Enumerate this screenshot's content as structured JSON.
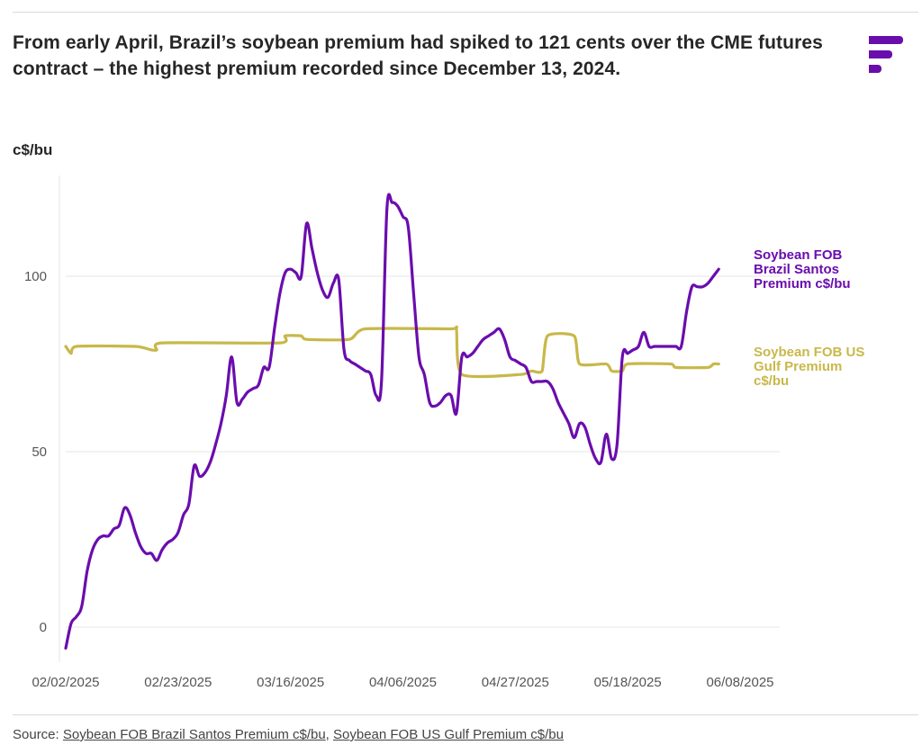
{
  "header": {
    "title": "From early April, Brazil’s soybean premium had spiked to 121 cents over the CME futures contract – the highest premium recorded since December 13, 2024."
  },
  "brand": {
    "logo_icon": "brand-logo-icon",
    "color": "#6a0dad"
  },
  "source": {
    "prefix": "Source: ",
    "links": [
      "Soybean FOB Brazil Santos Premium c$/bu",
      "Soybean FOB US Gulf Premium c$/bu"
    ],
    "separator": ", "
  },
  "chart_data": {
    "type": "line",
    "ylabel": "c$/bu",
    "ylim": [
      -10,
      130
    ],
    "yticks": [
      0,
      50,
      100
    ],
    "xlim": [
      "2025-02-02",
      "2025-06-08"
    ],
    "xticks": [
      "02/02/2025",
      "02/23/2025",
      "03/16/2025",
      "04/06/2025",
      "04/27/2025",
      "05/18/2025",
      "06/08/2025"
    ],
    "grid": "horizontal",
    "legend": "right (labels at line ends)",
    "series": [
      {
        "name": "Soybean FOB Brazil Santos Premium c$/bu",
        "label_lines": [
          "Soybean FOB",
          "Brazil Santos",
          "Premium c$/bu"
        ],
        "color": "#6a0dad",
        "points": [
          [
            "2025-02-02",
            -6
          ],
          [
            "2025-02-03",
            1
          ],
          [
            "2025-02-04",
            3
          ],
          [
            "2025-02-05",
            6
          ],
          [
            "2025-02-06",
            16
          ],
          [
            "2025-02-07",
            22
          ],
          [
            "2025-02-08",
            25
          ],
          [
            "2025-02-09",
            26
          ],
          [
            "2025-02-10",
            26
          ],
          [
            "2025-02-11",
            28
          ],
          [
            "2025-02-12",
            29
          ],
          [
            "2025-02-13",
            34
          ],
          [
            "2025-02-14",
            32
          ],
          [
            "2025-02-15",
            27
          ],
          [
            "2025-02-16",
            23
          ],
          [
            "2025-02-17",
            21
          ],
          [
            "2025-02-18",
            21
          ],
          [
            "2025-02-19",
            19
          ],
          [
            "2025-02-20",
            22
          ],
          [
            "2025-02-21",
            24
          ],
          [
            "2025-02-22",
            25
          ],
          [
            "2025-02-23",
            27
          ],
          [
            "2025-02-24",
            32
          ],
          [
            "2025-02-25",
            35
          ],
          [
            "2025-02-26",
            46
          ],
          [
            "2025-02-27",
            43
          ],
          [
            "2025-02-28",
            44
          ],
          [
            "2025-03-01",
            47
          ],
          [
            "2025-03-02",
            52
          ],
          [
            "2025-03-03",
            58
          ],
          [
            "2025-03-04",
            66
          ],
          [
            "2025-03-05",
            77
          ],
          [
            "2025-03-06",
            64
          ],
          [
            "2025-03-07",
            65
          ],
          [
            "2025-03-08",
            67
          ],
          [
            "2025-03-09",
            68
          ],
          [
            "2025-03-10",
            69
          ],
          [
            "2025-03-11",
            74
          ],
          [
            "2025-03-12",
            74
          ],
          [
            "2025-03-13",
            85
          ],
          [
            "2025-03-14",
            95
          ],
          [
            "2025-03-15",
            101
          ],
          [
            "2025-03-16",
            102
          ],
          [
            "2025-03-17",
            101
          ],
          [
            "2025-03-18",
            100
          ],
          [
            "2025-03-19",
            115
          ],
          [
            "2025-03-20",
            108
          ],
          [
            "2025-03-21",
            101
          ],
          [
            "2025-03-22",
            96
          ],
          [
            "2025-03-23",
            94
          ],
          [
            "2025-03-24",
            98
          ],
          [
            "2025-03-25",
            99
          ],
          [
            "2025-03-26",
            79
          ],
          [
            "2025-03-27",
            76
          ],
          [
            "2025-03-28",
            75
          ],
          [
            "2025-03-29",
            74
          ],
          [
            "2025-03-30",
            73
          ],
          [
            "2025-03-31",
            72
          ],
          [
            "2025-04-01",
            66
          ],
          [
            "2025-04-02",
            70
          ],
          [
            "2025-04-03",
            119
          ],
          [
            "2025-04-04",
            121
          ],
          [
            "2025-04-05",
            120
          ],
          [
            "2025-04-06",
            117
          ],
          [
            "2025-04-07",
            114
          ],
          [
            "2025-04-08",
            95
          ],
          [
            "2025-04-09",
            77
          ],
          [
            "2025-04-10",
            72
          ],
          [
            "2025-04-11",
            64
          ],
          [
            "2025-04-12",
            63
          ],
          [
            "2025-04-13",
            64
          ],
          [
            "2025-04-14",
            66
          ],
          [
            "2025-04-15",
            66
          ],
          [
            "2025-04-16",
            61
          ],
          [
            "2025-04-17",
            77
          ],
          [
            "2025-04-18",
            77
          ],
          [
            "2025-04-19",
            78
          ],
          [
            "2025-04-20",
            80
          ],
          [
            "2025-04-21",
            82
          ],
          [
            "2025-04-22",
            83
          ],
          [
            "2025-04-23",
            84
          ],
          [
            "2025-04-24",
            85
          ],
          [
            "2025-04-25",
            82
          ],
          [
            "2025-04-26",
            77
          ],
          [
            "2025-04-27",
            76
          ],
          [
            "2025-04-28",
            75
          ],
          [
            "2025-04-29",
            74
          ],
          [
            "2025-04-30",
            70
          ],
          [
            "2025-05-01",
            70
          ],
          [
            "2025-05-02",
            70
          ],
          [
            "2025-05-03",
            70
          ],
          [
            "2025-05-04",
            68
          ],
          [
            "2025-05-05",
            64
          ],
          [
            "2025-05-06",
            61
          ],
          [
            "2025-05-07",
            58
          ],
          [
            "2025-05-08",
            54
          ],
          [
            "2025-05-09",
            58
          ],
          [
            "2025-05-10",
            57
          ],
          [
            "2025-05-11",
            52
          ],
          [
            "2025-05-12",
            48
          ],
          [
            "2025-05-13",
            47
          ],
          [
            "2025-05-14",
            55
          ],
          [
            "2025-05-15",
            48
          ],
          [
            "2025-05-16",
            52
          ],
          [
            "2025-05-17",
            77
          ],
          [
            "2025-05-18",
            78
          ],
          [
            "2025-05-19",
            79
          ],
          [
            "2025-05-20",
            80
          ],
          [
            "2025-05-21",
            84
          ],
          [
            "2025-05-22",
            80
          ],
          [
            "2025-05-23",
            80
          ],
          [
            "2025-05-24",
            80
          ],
          [
            "2025-05-25",
            80
          ],
          [
            "2025-05-26",
            80
          ],
          [
            "2025-05-27",
            80
          ],
          [
            "2025-05-28",
            80
          ],
          [
            "2025-05-29",
            90
          ],
          [
            "2025-05-30",
            97
          ],
          [
            "2025-05-31",
            97
          ],
          [
            "2025-06-01",
            97
          ],
          [
            "2025-06-02",
            98
          ],
          [
            "2025-06-03",
            100
          ],
          [
            "2025-06-04",
            102
          ]
        ]
      },
      {
        "name": "Soybean FOB US Gulf Premium c$/bu",
        "label_lines": [
          "Soybean FOB US",
          "Gulf Premium",
          "c$/bu"
        ],
        "color": "#c8b84a",
        "points": [
          [
            "2025-02-02",
            80
          ],
          [
            "2025-02-03",
            78
          ],
          [
            "2025-02-04",
            80
          ],
          [
            "2025-02-15",
            80
          ],
          [
            "2025-02-18",
            79
          ],
          [
            "2025-02-19",
            79
          ],
          [
            "2025-02-20",
            81
          ],
          [
            "2025-03-14",
            81
          ],
          [
            "2025-03-15",
            83
          ],
          [
            "2025-03-18",
            83
          ],
          [
            "2025-03-19",
            82
          ],
          [
            "2025-03-27",
            82
          ],
          [
            "2025-03-30",
            85
          ],
          [
            "2025-04-15",
            85
          ],
          [
            "2025-04-16",
            85
          ],
          [
            "2025-04-17",
            72
          ],
          [
            "2025-04-28",
            72
          ],
          [
            "2025-04-30",
            73
          ],
          [
            "2025-05-02",
            73
          ],
          [
            "2025-05-03",
            83
          ],
          [
            "2025-05-08",
            83
          ],
          [
            "2025-05-09",
            75
          ],
          [
            "2025-05-14",
            75
          ],
          [
            "2025-05-15",
            73
          ],
          [
            "2025-05-17",
            73
          ],
          [
            "2025-05-18",
            75
          ],
          [
            "2025-05-26",
            75
          ],
          [
            "2025-05-27",
            74
          ],
          [
            "2025-06-02",
            74
          ],
          [
            "2025-06-03",
            75
          ],
          [
            "2025-06-04",
            75
          ]
        ]
      }
    ]
  }
}
